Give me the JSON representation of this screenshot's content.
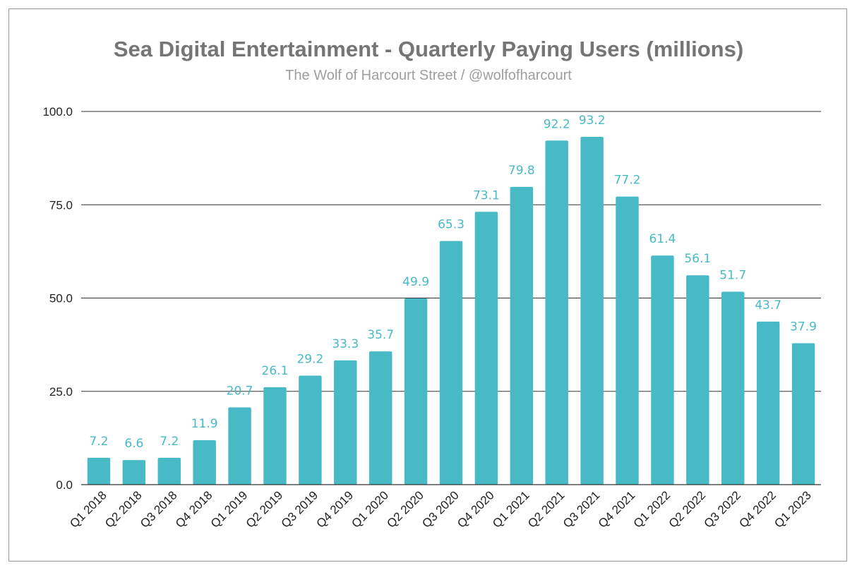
{
  "chart_data": {
    "type": "bar",
    "title": "Sea Digital Entertainment - Quarterly Paying Users (millions)",
    "subtitle": "The Wolf of Harcourt Street / @wolfofharcourt",
    "xlabel": "",
    "ylabel": "",
    "ylim": [
      0,
      100
    ],
    "yticks": [
      0,
      25,
      50,
      75,
      100
    ],
    "ytick_labels": [
      "0.0",
      "25.0",
      "50.0",
      "75.0",
      "100.0"
    ],
    "grid": true,
    "legend": "none",
    "bar_color": "#47bac6",
    "label_color": "#47bac6",
    "categories": [
      "Q1 2018",
      "Q2 2018",
      "Q3 2018",
      "Q4 2018",
      "Q1 2019",
      "Q2 2019",
      "Q3 2019",
      "Q4 2019",
      "Q1 2020",
      "Q2 2020",
      "Q3 2020",
      "Q4 2020",
      "Q1 2021",
      "Q2 2021",
      "Q3 2021",
      "Q4 2021",
      "Q1 2022",
      "Q2 2022",
      "Q3 2022",
      "Q4 2022",
      "Q1 2023"
    ],
    "values": [
      7.2,
      6.6,
      7.2,
      11.9,
      20.7,
      26.1,
      29.2,
      33.3,
      35.7,
      49.9,
      65.3,
      73.1,
      79.8,
      92.2,
      93.2,
      77.2,
      61.4,
      56.1,
      51.7,
      43.7,
      37.9
    ],
    "value_labels": [
      "7.2",
      "6.6",
      "7.2",
      "11.9",
      "20.7",
      "26.1",
      "29.2",
      "33.3",
      "35.7",
      "49.9",
      "65.3",
      "73.1",
      "79.8",
      "92.2",
      "93.2",
      "77.2",
      "61.4",
      "56.1",
      "51.7",
      "43.7",
      "37.9"
    ]
  }
}
